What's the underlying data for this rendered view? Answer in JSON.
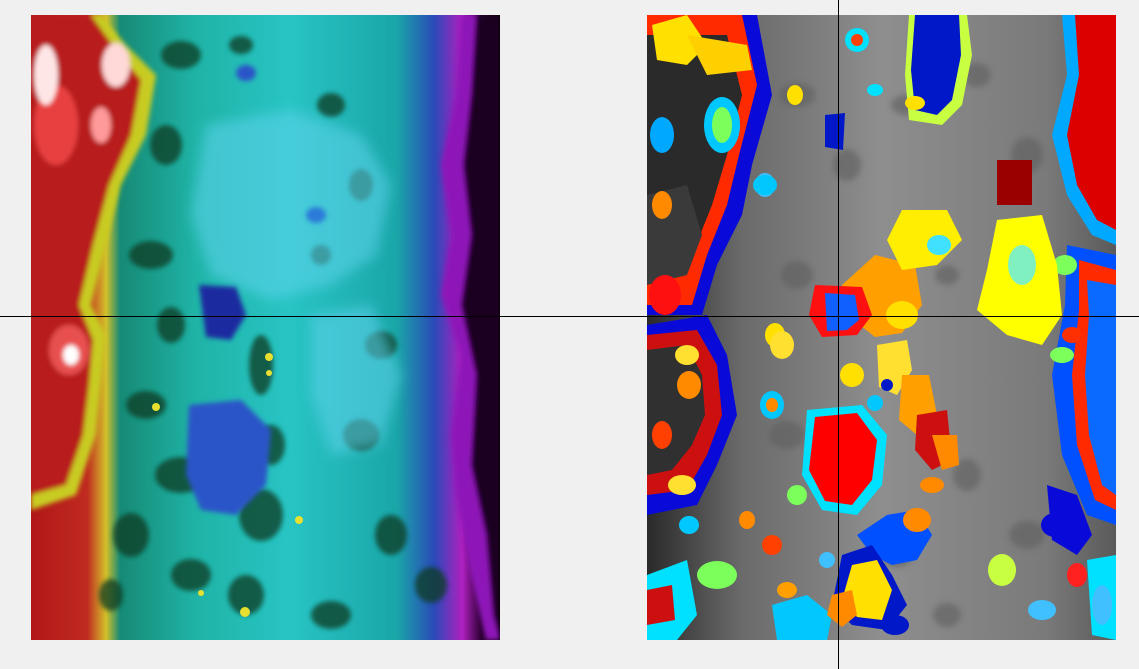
{
  "viewer": {
    "left_panel": {
      "colormap": "heat-cyan-magenta"
    },
    "right_panel": {
      "colormap": "grayscale-with-label-overlay"
    },
    "crosshair": {
      "color": "#000000"
    }
  },
  "colors": {
    "background": "#f0f0f0",
    "left_base": "#1fb3a6",
    "left_hot": "#b81a1a",
    "left_cold": "#5b00a0",
    "right_base": "#8a8a8a",
    "label_red": "#ff0000",
    "label_blue": "#0018c8",
    "label_yellow": "#ffff00",
    "label_cyan": "#00e0ff",
    "label_orange": "#ff8a00",
    "label_green": "#7cff5a"
  }
}
